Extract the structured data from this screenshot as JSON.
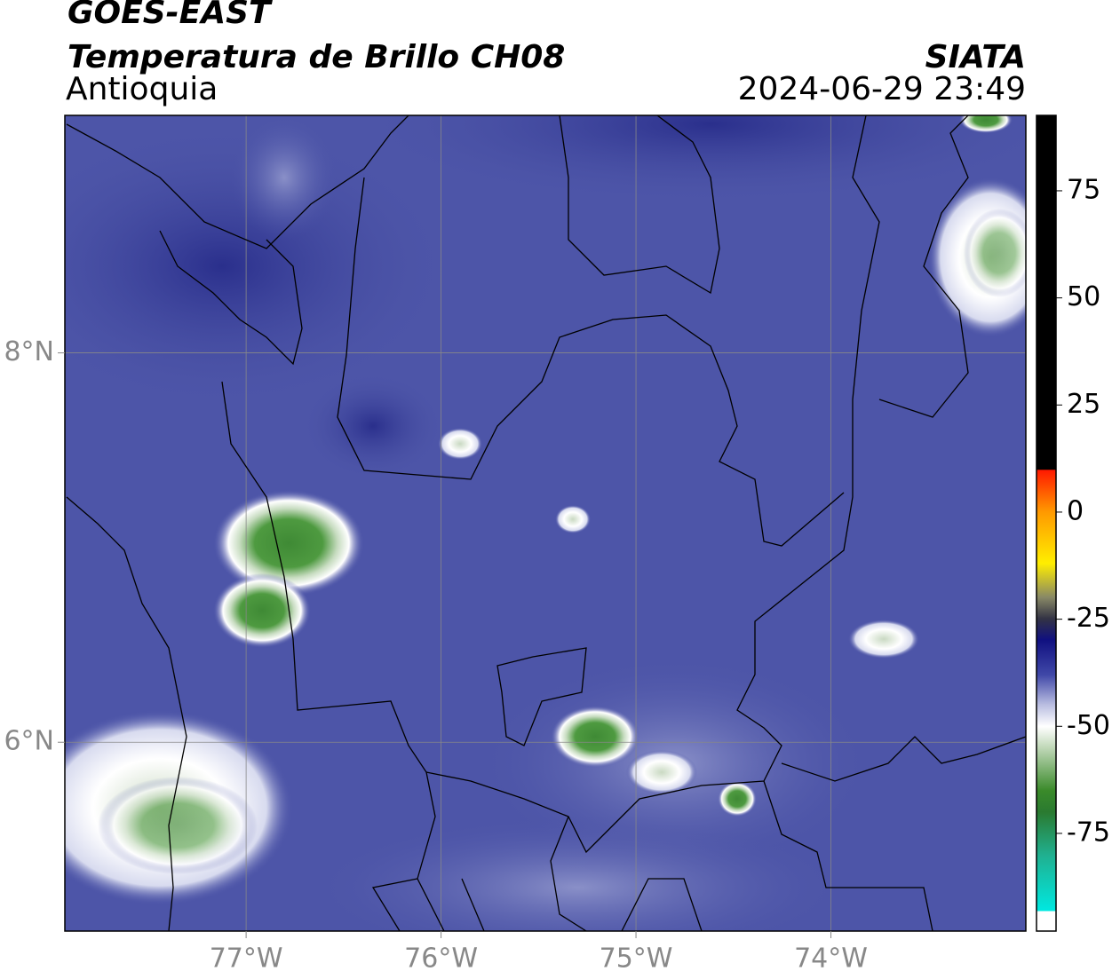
{
  "header": {
    "title": "GOES-EAST",
    "subtitle": "Temperatura de Brillo CH08",
    "region": "Antioquia",
    "source": "SIATA",
    "datetime": "2024-06-29 23:49"
  },
  "map": {
    "xlim": [
      -77.93,
      -73.0
    ],
    "ylim": [
      5.03,
      9.22
    ],
    "xticks": [
      {
        "value": -77,
        "label": "77°W"
      },
      {
        "value": -76,
        "label": "76°W"
      },
      {
        "value": -75,
        "label": "75°W"
      },
      {
        "value": -74,
        "label": "74°W"
      }
    ],
    "yticks": [
      {
        "value": 6,
        "label": "6°N"
      },
      {
        "value": 8,
        "label": "8°N"
      }
    ],
    "grid": true
  },
  "colorbar": {
    "lim": [
      -97.8,
      92.6
    ],
    "ticks": [
      75,
      50,
      25,
      0,
      -25,
      -50,
      -75
    ]
  }
}
